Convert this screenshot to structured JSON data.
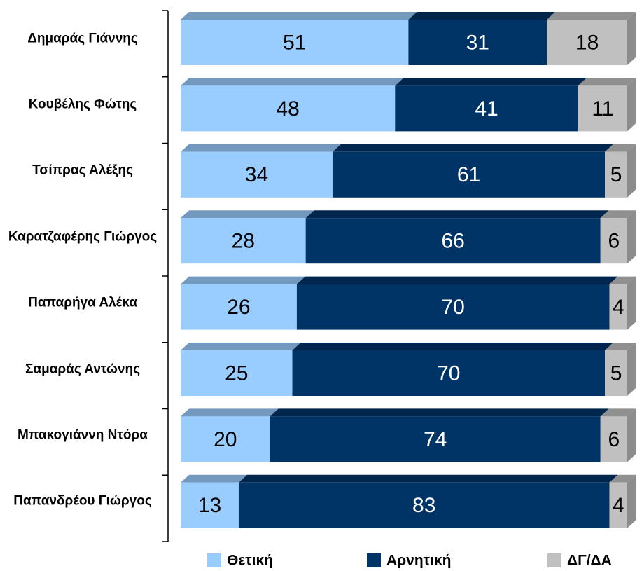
{
  "chart_data": {
    "type": "stacked-bar-horizontal",
    "categories": [
      "Δημαράς Γιάννης",
      "Κουβέλης Φώτης",
      "Τσίπρας Αλέξης",
      "Καρατζαφέρης Γιώργος",
      "Παπαρήγα Αλέκα",
      "Σαμαράς Αντώνης",
      "Μπακογιάννη Ντόρα",
      "Παπανδρέου Γιώργος"
    ],
    "series": [
      {
        "name": "Θετική",
        "color": "#99ccff",
        "values": [
          51,
          48,
          34,
          28,
          26,
          25,
          20,
          13
        ]
      },
      {
        "name": "Αρνητική",
        "color": "#003366",
        "values": [
          31,
          41,
          61,
          66,
          70,
          70,
          74,
          83
        ]
      },
      {
        "name": "ΔΓ/ΔΑ",
        "color": "#c0c0c0",
        "values": [
          18,
          11,
          5,
          6,
          4,
          5,
          6,
          4
        ]
      }
    ],
    "xlim": [
      0,
      100
    ],
    "legend": "bottom"
  }
}
